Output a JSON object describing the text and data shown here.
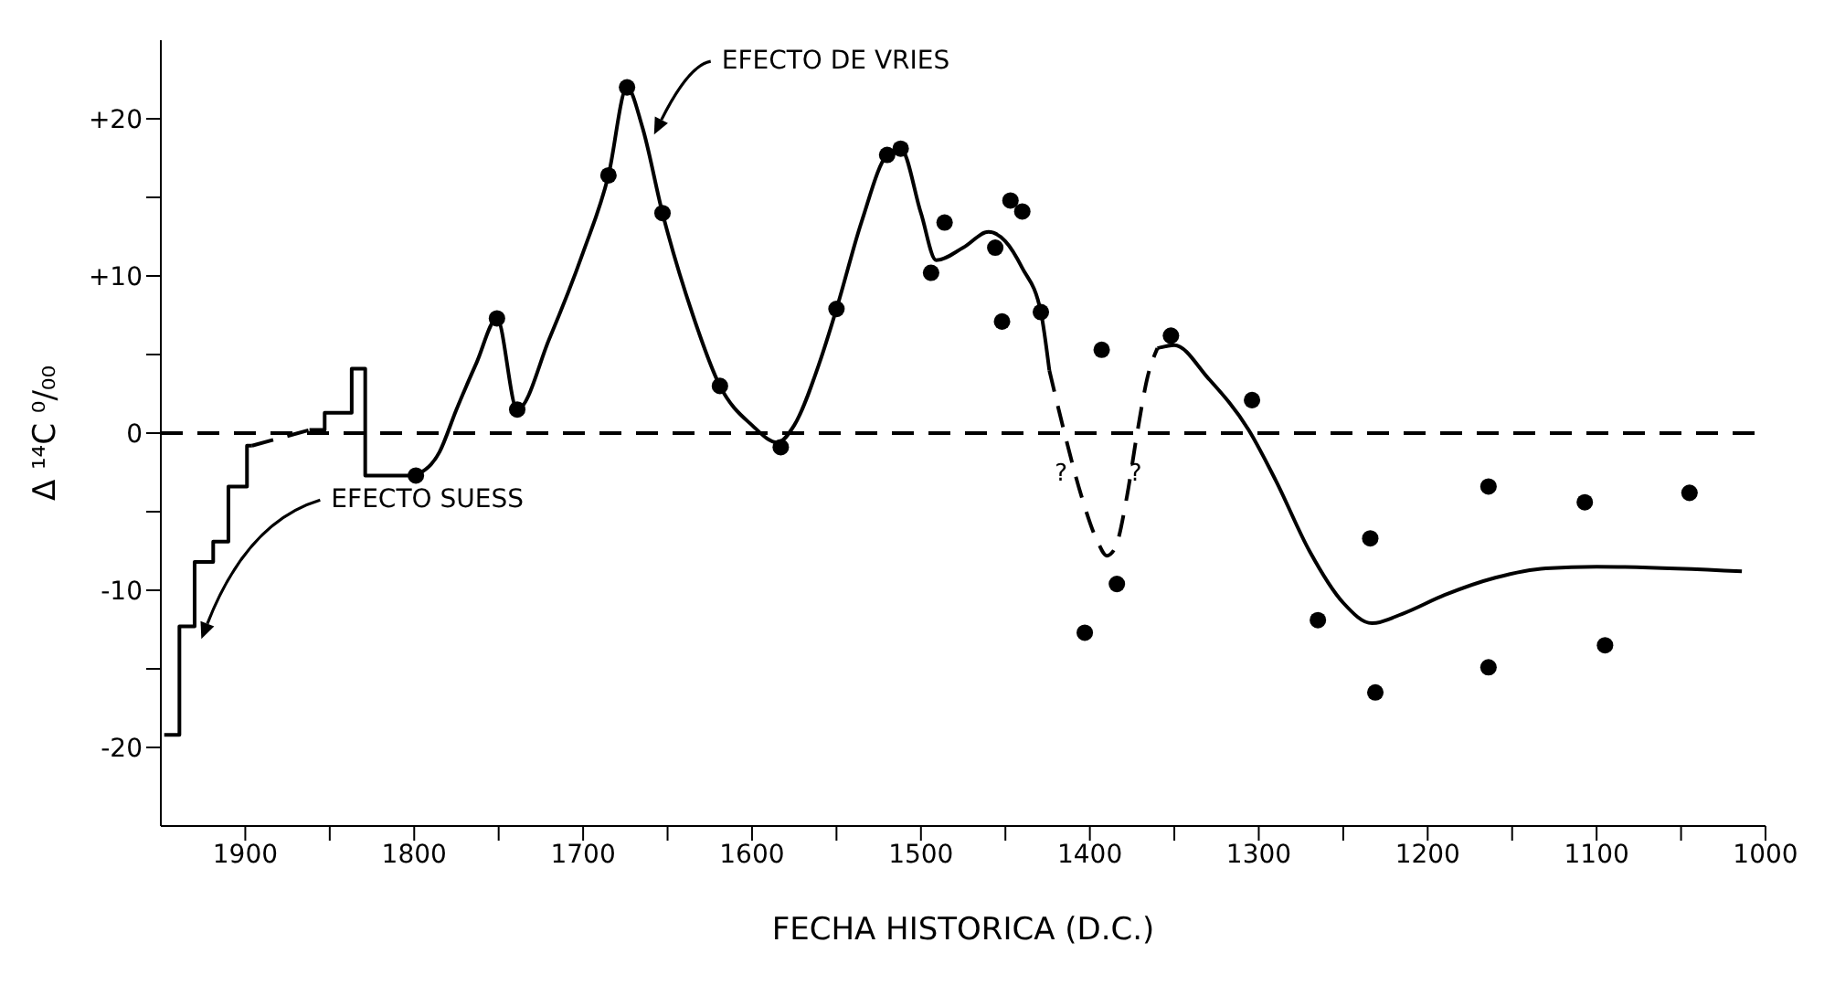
{
  "chart_data": {
    "type": "line",
    "xlabel": "FECHA HISTORICA  (D.C.)",
    "ylabel": "Δ ¹⁴C ⁰/₀₀",
    "xlim": [
      1950,
      1000
    ],
    "ylim": [
      -25,
      25
    ],
    "xticks": [
      1900,
      {
        "value": 1850,
        "label": null
      },
      1800,
      {
        "value": 1750,
        "label": null
      },
      1700,
      {
        "value": 1650,
        "label": null
      },
      1600,
      {
        "value": 1550,
        "label": null
      },
      1500,
      {
        "value": 1450,
        "label": null
      },
      1400,
      {
        "value": 1350,
        "label": null
      },
      1300,
      {
        "value": 1250,
        "label": null
      },
      1200,
      {
        "value": 1150,
        "label": null
      },
      1100,
      {
        "value": 1050,
        "label": null
      },
      1000
    ],
    "yticks": [
      -20,
      {
        "value": -15,
        "label": null
      },
      -10,
      {
        "value": -5,
        "label": null
      },
      0,
      {
        "value": 5,
        "label": null
      },
      {
        "value": 10,
        "label": "+10"
      },
      {
        "value": 15,
        "label": null
      },
      {
        "value": 20,
        "label": "+20"
      }
    ],
    "marker": "none",
    "grid": false,
    "legend": false,
    "series": [
      {
        "type": "step",
        "color": "#000000",
        "x": [
          1948,
          1939,
          1930,
          1919,
          1910,
          1899,
          1896
        ],
        "values": [
          -19.2,
          -12.3,
          -8.2,
          -6.9,
          -3.4,
          -0.8,
          -0.8
        ]
      },
      {
        "color": "#000000",
        "line_style": "dashed",
        "x": [
          1896,
          1862
        ],
        "values": [
          -0.8,
          0.2
        ]
      },
      {
        "type": "step",
        "color": "#000000",
        "x": [
          1862,
          1853,
          1837,
          1829,
          1799
        ],
        "values": [
          0.2,
          1.3,
          4.1,
          -2.7,
          -2.7
        ]
      },
      {
        "color": "#000000",
        "x": [
          1799,
          1785,
          1775,
          1763,
          1751,
          1739,
          1720,
          1700,
          1685,
          1674,
          1665,
          1653,
          1635,
          1619,
          1600,
          1585,
          1575,
          1560,
          1550,
          1535,
          1520,
          1512,
          1500,
          1491,
          1475,
          1460,
          1450,
          1440,
          1429,
          1424
        ],
        "values": [
          -2.7,
          -1.2,
          1.5,
          4.5,
          7.3,
          1.5,
          6,
          11.5,
          16.4,
          22,
          19.5,
          14,
          7.5,
          3,
          0.5,
          -0.6,
          0.5,
          4.5,
          7.9,
          13.5,
          17.7,
          18.1,
          14,
          11,
          11.8,
          12.8,
          12.2,
          10.5,
          7.7,
          4
        ]
      },
      {
        "color": "#000000",
        "line_style": "dashed",
        "x": [
          1424,
          1415,
          1405,
          1395,
          1390,
          1385,
          1378,
          1372,
          1366,
          1360
        ],
        "values": [
          4,
          0,
          -4,
          -7,
          -7.8,
          -7.3,
          -4,
          0,
          3.5,
          5.4
        ]
      },
      {
        "color": "#000000",
        "x": [
          1360,
          1350,
          1330,
          1306,
          1290,
          1270,
          1250,
          1233,
          1215,
          1190,
          1160,
          1130,
          1100,
          1014
        ],
        "values": [
          5.4,
          5.6,
          3.5,
          0.2,
          -3,
          -7.5,
          -10.8,
          -12.1,
          -11.5,
          -10.3,
          -9.2,
          -8.6,
          -8.5,
          -8.8
        ]
      },
      {
        "type": "scatter",
        "marker": "circle",
        "color": "#000000",
        "x": [
          1799,
          1751,
          1739,
          1685,
          1674,
          1653,
          1619,
          1583,
          1550,
          1520,
          1512,
          1486,
          1494,
          1447,
          1440,
          1456,
          1452,
          1429,
          1393,
          1352,
          1304,
          1403,
          1384,
          1265,
          1234,
          1231,
          1164,
          1164,
          1107,
          1095,
          1045
        ],
        "values": [
          -2.7,
          7.3,
          1.5,
          16.4,
          22,
          14,
          3,
          -0.9,
          7.9,
          17.7,
          18.1,
          13.4,
          10.2,
          14.8,
          14.1,
          11.8,
          7.1,
          7.7,
          5.3,
          6.2,
          2.1,
          -12.7,
          -9.6,
          -11.9,
          -6.7,
          -16.5,
          -3.4,
          -14.9,
          -4.4,
          -13.5,
          -3.8
        ]
      }
    ],
    "ref_lines": [
      {
        "axis": "y",
        "value": 0,
        "color": "#000000",
        "line_style": "dashed"
      }
    ],
    "annotations": [
      "EFECTO DE VRIES",
      "EFECTO SUESS",
      "?",
      "?"
    ]
  }
}
